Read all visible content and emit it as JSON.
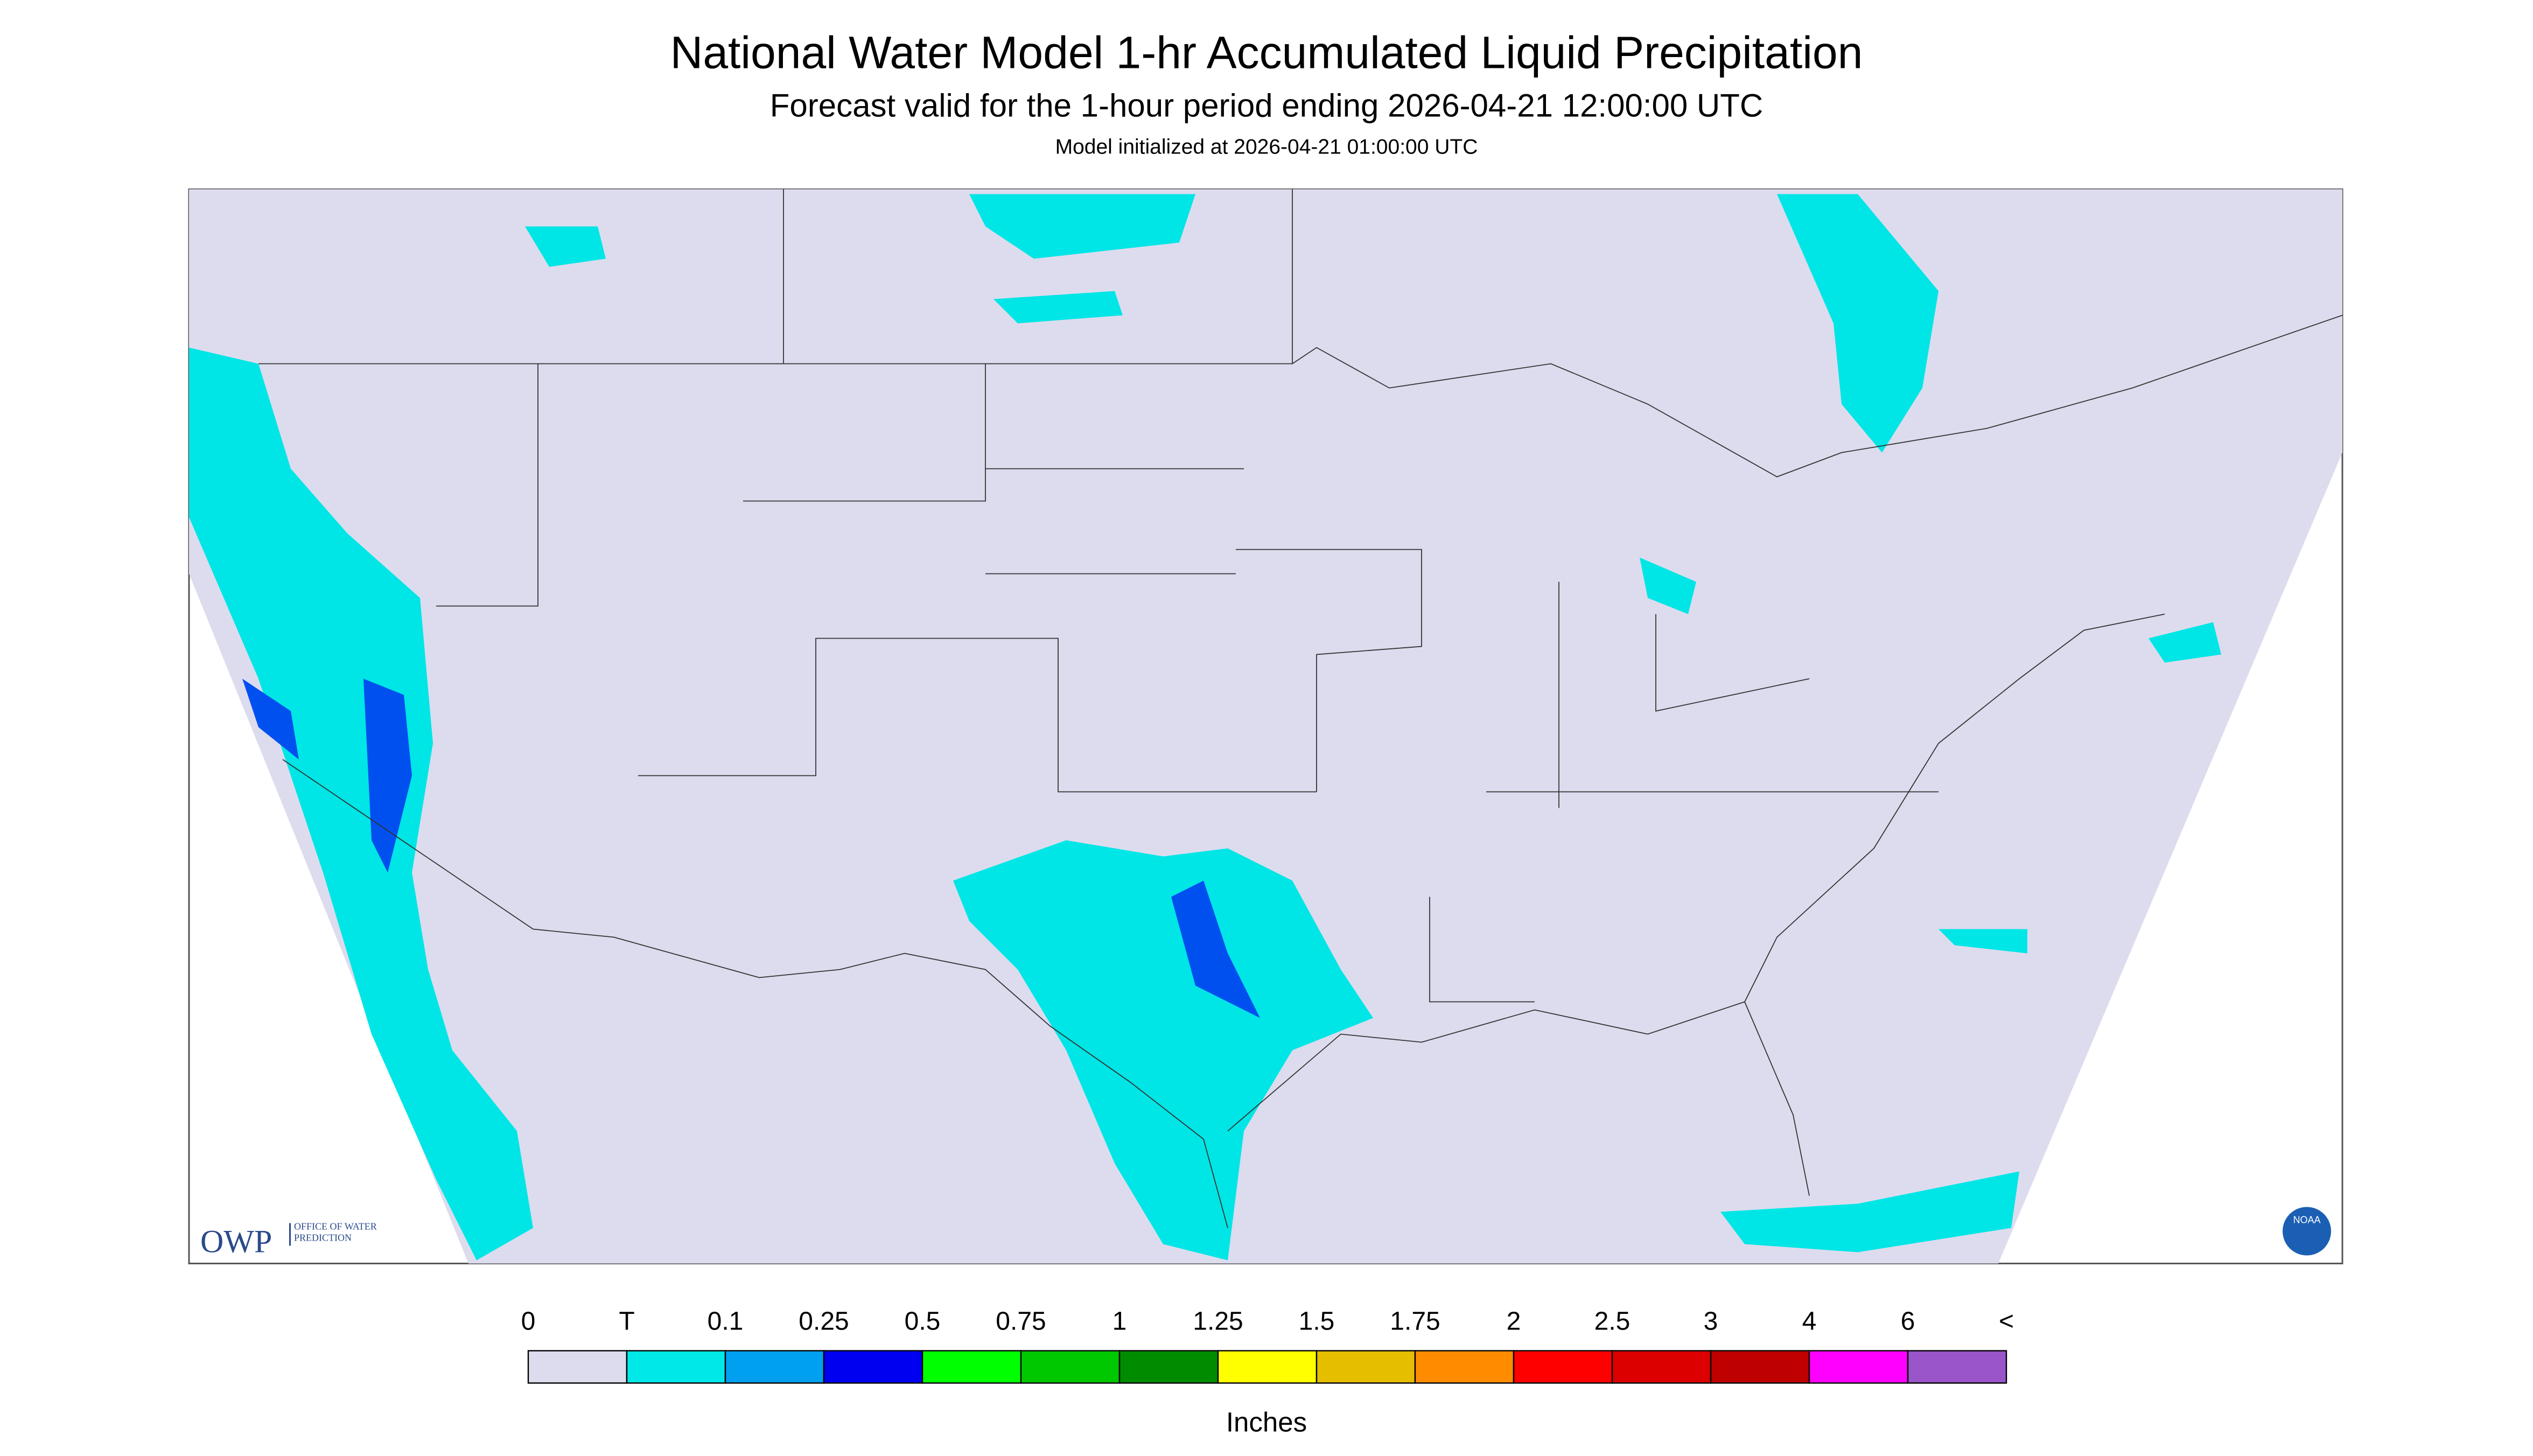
{
  "header": {
    "title": "National Water Model 1-hr Accumulated Liquid Precipitation",
    "subtitle": "Forecast valid for the 1-hour period ending 2026-04-21 12:00:00 UTC",
    "init": "Model initialized at 2026-04-21 01:00:00 UTC"
  },
  "logos": {
    "owp": "OWP",
    "owp_name": "OFFICE OF WATER PREDICTION",
    "noaa": "NOAA"
  },
  "legend": {
    "labels": [
      "0",
      "T",
      "0.1",
      "0.25",
      "0.5",
      "0.75",
      "1",
      "1.25",
      "1.5",
      "1.75",
      "2",
      "2.5",
      "3",
      "4",
      "6",
      "<"
    ],
    "colors": [
      "#dcdcee",
      "#00e8e8",
      "#00a0f0",
      "#0000f0",
      "#00ff00",
      "#00c800",
      "#008c00",
      "#ffff00",
      "#e6be00",
      "#ff8c00",
      "#ff0000",
      "#dc0000",
      "#be0000",
      "#ff00ff",
      "#9955c9"
    ],
    "units": "Inches"
  }
}
